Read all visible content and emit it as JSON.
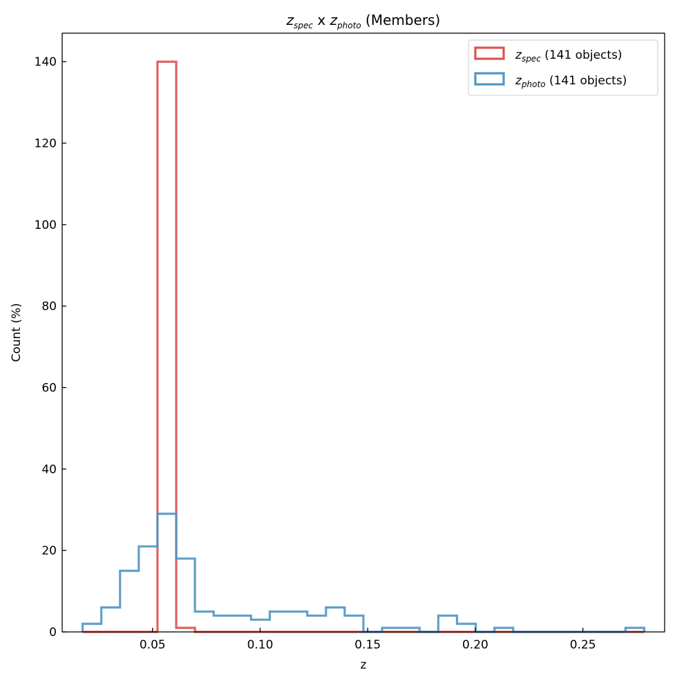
{
  "chart_data": {
    "type": "histogram",
    "title": {
      "z1": "z",
      "sub1": "spec",
      "mid": " x ",
      "z2": "z",
      "sub2": "photo",
      "tail": " (Members)"
    },
    "xlabel": "z",
    "ylabel": "Count (%)",
    "xlim": [
      0.008,
      0.288
    ],
    "ylim": [
      0,
      147
    ],
    "xticks": [
      0.05,
      0.1,
      0.15,
      0.2,
      0.25
    ],
    "xtick_labels": [
      "0.05",
      "0.10",
      "0.15",
      "0.20",
      "0.25"
    ],
    "yticks": [
      0,
      20,
      40,
      60,
      80,
      100,
      120,
      140
    ],
    "ytick_labels": [
      "0",
      "20",
      "40",
      "60",
      "80",
      "100",
      "120",
      "140"
    ],
    "grid": false,
    "legend_position": "top-right",
    "bin_edges": [
      0.0175,
      0.0262,
      0.0349,
      0.0436,
      0.0523,
      0.061,
      0.0697,
      0.0784,
      0.0871,
      0.0958,
      0.1045,
      0.1132,
      0.1219,
      0.1306,
      0.1393,
      0.148,
      0.1567,
      0.1654,
      0.1741,
      0.1828,
      0.1915,
      0.2002,
      0.2089,
      0.2176,
      0.2263,
      0.235,
      0.2437,
      0.2524,
      0.2611,
      0.2698,
      0.2785
    ],
    "series": [
      {
        "name": "zspec",
        "legend": {
          "z": "z",
          "sub": "spec",
          "tail": " (141 objects)"
        },
        "color": "#d9534f",
        "values": [
          0,
          0,
          0,
          0,
          140,
          1,
          0,
          0,
          0,
          0,
          0,
          0,
          0,
          0,
          0,
          0,
          0,
          0,
          0,
          0,
          0,
          0,
          0,
          0,
          0,
          0,
          0,
          0,
          0,
          0
        ]
      },
      {
        "name": "zphoto",
        "legend": {
          "z": "z",
          "sub": "photo",
          "tail": " (141 objects)"
        },
        "color": "#4f96c4",
        "values": [
          2,
          6,
          15,
          21,
          29,
          18,
          5,
          4,
          4,
          3,
          5,
          5,
          4,
          6,
          4,
          0,
          1,
          1,
          0,
          4,
          2,
          0,
          1,
          0,
          0,
          0,
          0,
          0,
          0,
          1
        ]
      }
    ]
  }
}
